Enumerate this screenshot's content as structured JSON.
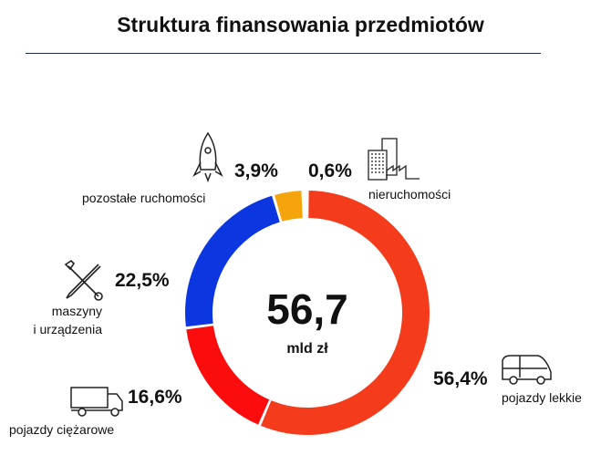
{
  "chart_data": {
    "type": "pie",
    "title": "Struktura finansowania przedmiotów",
    "total": "56,7",
    "total_unit": "mld zł",
    "categories": [
      "pojazdy lekkie",
      "pojazdy ciężarowe",
      "maszyny i urządzenia",
      "pozostałe ruchomości",
      "nieruchomości"
    ],
    "values": [
      56.4,
      16.6,
      22.5,
      3.9,
      0.6
    ],
    "value_labels": [
      "56,4%",
      "16,6%",
      "22,5%",
      "3,9%",
      "0,6%"
    ],
    "colors": [
      "#f43c1c",
      "#fb0d0d",
      "#0b36e0",
      "#f5a40c",
      "#ffffff"
    ],
    "icons": [
      "car-icon",
      "truck-icon",
      "wrench-screwdriver-icon",
      "rocket-icon",
      "building-factory-icon"
    ]
  },
  "labels": {
    "maszyny_line1": "maszyny",
    "maszyny_line2": "i urządzenia"
  }
}
